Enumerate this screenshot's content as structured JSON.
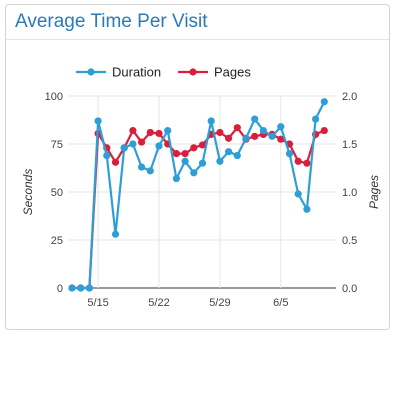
{
  "widget": {
    "title": "Average Time Per Visit"
  },
  "chart_data": {
    "type": "line",
    "x": [
      "5/12",
      "5/13",
      "5/14",
      "5/15",
      "5/16",
      "5/17",
      "5/18",
      "5/19",
      "5/20",
      "5/21",
      "5/22",
      "5/23",
      "5/24",
      "5/25",
      "5/26",
      "5/27",
      "5/28",
      "5/29",
      "5/30",
      "5/31",
      "6/1",
      "6/2",
      "6/3",
      "6/4",
      "6/5",
      "6/6",
      "6/7",
      "6/8",
      "6/9",
      "6/10",
      "6/11"
    ],
    "x_tick_labels": [
      "5/15",
      "5/22",
      "5/29",
      "6/5"
    ],
    "series": [
      {
        "name": "Duration",
        "axis": "left",
        "color": "#2e9fd6",
        "values": [
          0,
          0,
          0,
          87,
          69,
          28,
          73,
          75,
          63,
          61,
          74,
          82,
          57,
          66,
          60,
          65,
          87,
          66,
          71,
          69,
          78,
          88,
          82,
          79,
          84,
          70,
          49,
          41,
          88,
          97,
          null
        ]
      },
      {
        "name": "Pages",
        "axis": "right",
        "color": "#d91f3c",
        "values": [
          0,
          0,
          0,
          1.61,
          1.46,
          1.31,
          1.46,
          1.64,
          1.52,
          1.62,
          1.61,
          1.5,
          1.4,
          1.4,
          1.46,
          1.49,
          1.6,
          1.62,
          1.56,
          1.67,
          1.55,
          1.58,
          1.6,
          1.6,
          1.55,
          1.5,
          1.32,
          1.3,
          1.6,
          1.64,
          null
        ]
      }
    ],
    "y_left": {
      "label": "Seconds",
      "range": [
        0,
        100
      ],
      "ticks": [
        "0",
        "25",
        "50",
        "75",
        "100"
      ]
    },
    "y_right": {
      "label": "Pages",
      "range": [
        0,
        2.0
      ],
      "ticks": [
        "0.0",
        "0.5",
        "1.0",
        "1.5",
        "2.0"
      ]
    },
    "legend_position": "top",
    "grid": "vertical lines at tick dates, horizontal lines at y ticks"
  }
}
